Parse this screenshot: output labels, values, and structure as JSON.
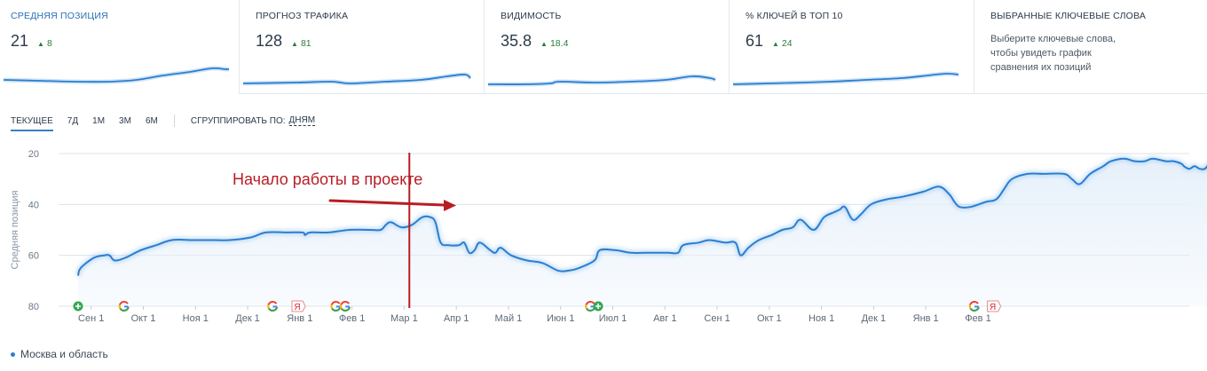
{
  "metrics": [
    {
      "title": "Средняя позиция",
      "value": "21",
      "delta": "8",
      "active": true
    },
    {
      "title": "Прогноз трафика",
      "value": "128",
      "delta": "81"
    },
    {
      "title": "Видимость",
      "value": "35.8",
      "delta": "18.4"
    },
    {
      "title": "% ключей в ТОП 10",
      "value": "61",
      "delta": "24"
    },
    {
      "title": "Выбранные ключевые слова",
      "description": "Выберите ключевые слова, чтобы увидеть график сравнения их позиций"
    }
  ],
  "controls": {
    "ranges": [
      "Текущее",
      "7Д",
      "1М",
      "3М",
      "6М"
    ],
    "active_range": "Текущее",
    "group_label": "Сгруппировать по:",
    "group_value": "дням"
  },
  "colors": {
    "line": "#2a7fd0",
    "area": "#e6f0fa",
    "marker_line": "#b81d24",
    "annotation": "#b81d24",
    "delta": "#2a7d3c",
    "google_green": "#34a853"
  },
  "chart_data": {
    "type": "line",
    "ylabel": "Средняя позиция",
    "y_inverted": true,
    "ylim": [
      80,
      20
    ],
    "yticks": [
      20,
      40,
      60,
      80
    ],
    "grid": true,
    "x_range": [
      0,
      21.3
    ],
    "x_ticks": [
      {
        "label": "Сен 1",
        "x": 0.25
      },
      {
        "label": "Окт 1",
        "x": 1.25
      },
      {
        "label": "Ноя 1",
        "x": 2.25
      },
      {
        "label": "Дек 1",
        "x": 3.25
      },
      {
        "label": "Янв 1",
        "x": 4.25
      },
      {
        "label": "Фев 1",
        "x": 5.25
      },
      {
        "label": "Мар 1",
        "x": 6.25
      },
      {
        "label": "Апр 1",
        "x": 7.25
      },
      {
        "label": "Май 1",
        "x": 8.25
      },
      {
        "label": "Июн 1",
        "x": 9.25
      },
      {
        "label": "Июл 1",
        "x": 10.25
      },
      {
        "label": "Авг 1",
        "x": 11.25
      },
      {
        "label": "Сен 1",
        "x": 12.25
      },
      {
        "label": "Окт 1",
        "x": 13.25
      },
      {
        "label": "Ноя 1",
        "x": 14.25
      },
      {
        "label": "Дек 1",
        "x": 15.25
      },
      {
        "label": "Янв 1",
        "x": 16.25
      },
      {
        "label": "Фев 1",
        "x": 17.25
      }
    ],
    "series": [
      {
        "name": "Москва и область",
        "points": [
          [
            0.0,
            68
          ],
          [
            0.05,
            65
          ],
          [
            0.3,
            61
          ],
          [
            0.5,
            60
          ],
          [
            0.6,
            60
          ],
          [
            0.7,
            62
          ],
          [
            0.9,
            61
          ],
          [
            1.2,
            58
          ],
          [
            1.5,
            56
          ],
          [
            1.8,
            54
          ],
          [
            2.2,
            54
          ],
          [
            2.6,
            54
          ],
          [
            2.9,
            54
          ],
          [
            3.3,
            53
          ],
          [
            3.6,
            51
          ],
          [
            4.0,
            51
          ],
          [
            4.3,
            51
          ],
          [
            4.35,
            52
          ],
          [
            4.45,
            51
          ],
          [
            4.8,
            51
          ],
          [
            5.2,
            50
          ],
          [
            5.6,
            50
          ],
          [
            5.8,
            50
          ],
          [
            5.9,
            48
          ],
          [
            6.0,
            47
          ],
          [
            6.2,
            49
          ],
          [
            6.4,
            48
          ],
          [
            6.6,
            45
          ],
          [
            6.75,
            45
          ],
          [
            6.85,
            47
          ],
          [
            6.95,
            55
          ],
          [
            7.1,
            56
          ],
          [
            7.3,
            56
          ],
          [
            7.4,
            55
          ],
          [
            7.5,
            59
          ],
          [
            7.6,
            58
          ],
          [
            7.7,
            55
          ],
          [
            7.9,
            58
          ],
          [
            8.0,
            59
          ],
          [
            8.1,
            57
          ],
          [
            8.3,
            60
          ],
          [
            8.6,
            62
          ],
          [
            8.9,
            63
          ],
          [
            9.2,
            66
          ],
          [
            9.4,
            66
          ],
          [
            9.6,
            65
          ],
          [
            9.9,
            62
          ],
          [
            10.0,
            58
          ],
          [
            10.3,
            58
          ],
          [
            10.6,
            59
          ],
          [
            10.9,
            59
          ],
          [
            11.3,
            59
          ],
          [
            11.5,
            59
          ],
          [
            11.6,
            56
          ],
          [
            11.9,
            55
          ],
          [
            12.1,
            54
          ],
          [
            12.4,
            55
          ],
          [
            12.6,
            55
          ],
          [
            12.7,
            60
          ],
          [
            12.85,
            57
          ],
          [
            13.05,
            54
          ],
          [
            13.3,
            52
          ],
          [
            13.5,
            50
          ],
          [
            13.7,
            49
          ],
          [
            13.85,
            46
          ],
          [
            14.1,
            50
          ],
          [
            14.3,
            45
          ],
          [
            14.5,
            43
          ],
          [
            14.6,
            42
          ],
          [
            14.7,
            41
          ],
          [
            14.85,
            46
          ],
          [
            15.0,
            44
          ],
          [
            15.2,
            40
          ],
          [
            15.5,
            38
          ],
          [
            15.8,
            37
          ],
          [
            16.2,
            35
          ],
          [
            16.5,
            33
          ],
          [
            16.7,
            36
          ],
          [
            16.8,
            39
          ],
          [
            16.9,
            41
          ],
          [
            17.1,
            41
          ],
          [
            17.4,
            39
          ],
          [
            17.6,
            38
          ],
          [
            17.75,
            34
          ],
          [
            17.9,
            30
          ],
          [
            18.2,
            28
          ],
          [
            18.5,
            28
          ],
          [
            18.9,
            28
          ],
          [
            19.05,
            30
          ],
          [
            19.2,
            32
          ],
          [
            19.4,
            28
          ],
          [
            19.65,
            25
          ],
          [
            19.8,
            23
          ],
          [
            20.05,
            22
          ],
          [
            20.25,
            23
          ],
          [
            20.45,
            23
          ],
          [
            20.6,
            22
          ],
          [
            20.85,
            23
          ],
          [
            21.0,
            23
          ],
          [
            21.15,
            24
          ],
          [
            21.2,
            25
          ],
          [
            21.3,
            26
          ],
          [
            21.4,
            25
          ],
          [
            21.5,
            26
          ],
          [
            21.6,
            26
          ],
          [
            21.7,
            24
          ],
          [
            21.75,
            28
          ],
          [
            21.85,
            25
          ],
          [
            21.95,
            20
          ]
        ]
      }
    ],
    "marker_line": {
      "x": 6.35
    },
    "annotation": "Начало работы в проекте",
    "events": [
      {
        "x": 0.0,
        "icon": "plus"
      },
      {
        "x": 0.88,
        "icon": "google"
      },
      {
        "x": 3.73,
        "icon": "google"
      },
      {
        "x": 4.22,
        "icon": "yandex",
        "label": "Я"
      },
      {
        "x": 4.94,
        "icon": "google"
      },
      {
        "x": 5.12,
        "icon": "google"
      },
      {
        "x": 9.82,
        "icon": "google"
      },
      {
        "x": 9.97,
        "icon": "plus"
      },
      {
        "x": 17.18,
        "icon": "google"
      },
      {
        "x": 17.55,
        "icon": "yandex",
        "label": "Я"
      }
    ]
  },
  "legend": {
    "label": "Москва и область"
  }
}
